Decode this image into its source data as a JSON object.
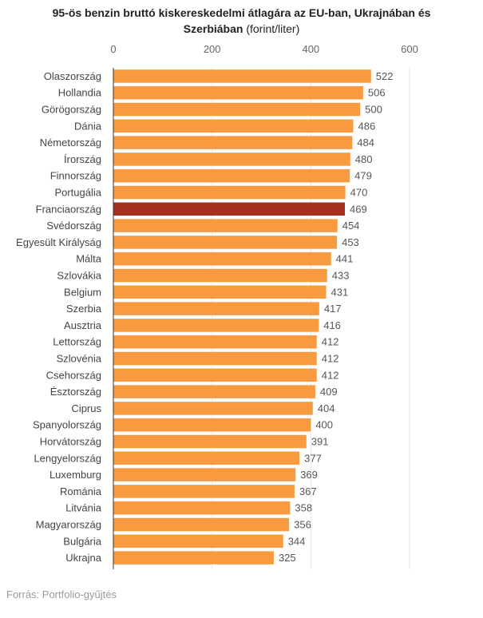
{
  "title": {
    "line1": "95-ös benzin bruttó kiskereskedelmi átlagára az EU-ban, Ukrajnában és",
    "line2_bold": "Szerbiában",
    "line2_normal": " (forint/liter)"
  },
  "source": "Forrás: Portfolio-gyűjtés",
  "colors": {
    "bar": "#f89b40",
    "highlight": "#a5301e"
  },
  "chart_data": {
    "type": "bar",
    "orientation": "horizontal",
    "title": "95-ös benzin bruttó kiskereskedelmi átlagára az EU-ban, Ukrajnában és Szerbiában (forint/liter)",
    "xlim": [
      0,
      600
    ],
    "ticks": [
      0,
      200,
      400,
      600
    ],
    "grid": true,
    "highlight_category": "Franciaország",
    "categories": [
      "Olaszország",
      "Hollandia",
      "Görögország",
      "Dánia",
      "Németország",
      "Írország",
      "Finnország",
      "Portugália",
      "Franciaország",
      "Svédország",
      "Egyesült Királyság",
      "Málta",
      "Szlovákia",
      "Belgium",
      "Szerbia",
      "Ausztria",
      "Lettország",
      "Szlovénia",
      "Csehország",
      "Észtország",
      "Ciprus",
      "Spanyolország",
      "Horvátország",
      "Lengyelország",
      "Luxemburg",
      "Románia",
      "Litvánia",
      "Magyarország",
      "Bulgária",
      "Ukrajna"
    ],
    "values": [
      522,
      506,
      500,
      486,
      484,
      480,
      479,
      470,
      469,
      454,
      453,
      441,
      433,
      431,
      417,
      416,
      412,
      412,
      412,
      409,
      404,
      400,
      391,
      377,
      369,
      367,
      358,
      356,
      344,
      325
    ]
  }
}
